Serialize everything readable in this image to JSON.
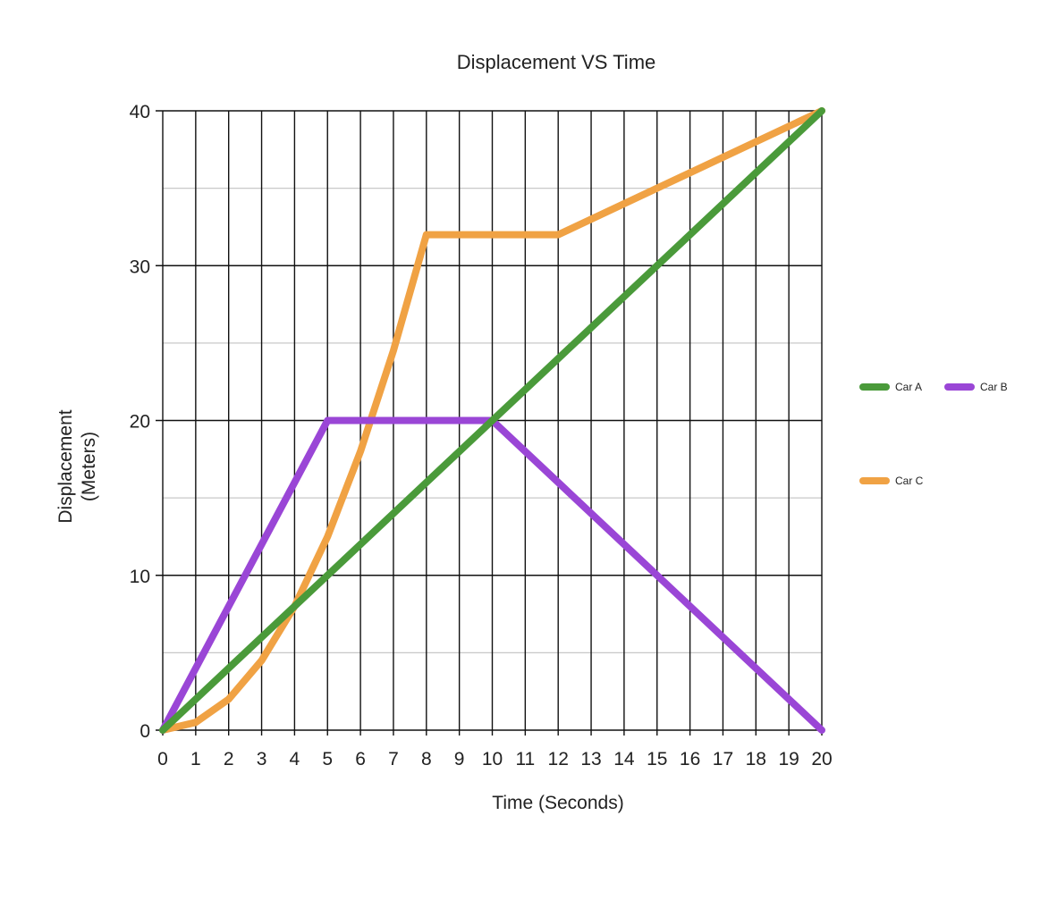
{
  "chart_data": {
    "type": "line",
    "title": "Displacement VS Time",
    "xlabel": "Time (Seconds)",
    "ylabel_lines": [
      "Displacement",
      "(Meters)"
    ],
    "xlim": [
      0,
      20
    ],
    "ylim": [
      0,
      40
    ],
    "x_ticks": [
      0,
      1,
      2,
      3,
      4,
      5,
      6,
      7,
      8,
      9,
      10,
      11,
      12,
      13,
      14,
      15,
      16,
      17,
      18,
      19,
      20
    ],
    "y_ticks": [
      0,
      10,
      20,
      30,
      40
    ],
    "y_minor_ticks": [
      5,
      15,
      25,
      35
    ],
    "grid": true,
    "legend_position": "right",
    "series": [
      {
        "name": "Car A",
        "color": "#4a9a3a",
        "points": [
          [
            0,
            0
          ],
          [
            20,
            40
          ]
        ]
      },
      {
        "name": "Car B",
        "color": "#9a46d6",
        "points": [
          [
            0,
            0
          ],
          [
            5,
            20
          ],
          [
            10,
            20
          ],
          [
            20,
            0
          ]
        ]
      },
      {
        "name": "Car C",
        "color": "#f0a244",
        "points": [
          [
            0,
            0
          ],
          [
            1,
            0.5
          ],
          [
            2,
            2
          ],
          [
            3,
            4.5
          ],
          [
            4,
            8
          ],
          [
            5,
            12.5
          ],
          [
            6,
            18
          ],
          [
            7,
            24.5
          ],
          [
            8,
            32
          ],
          [
            12,
            32
          ],
          [
            20,
            40
          ]
        ]
      }
    ]
  }
}
